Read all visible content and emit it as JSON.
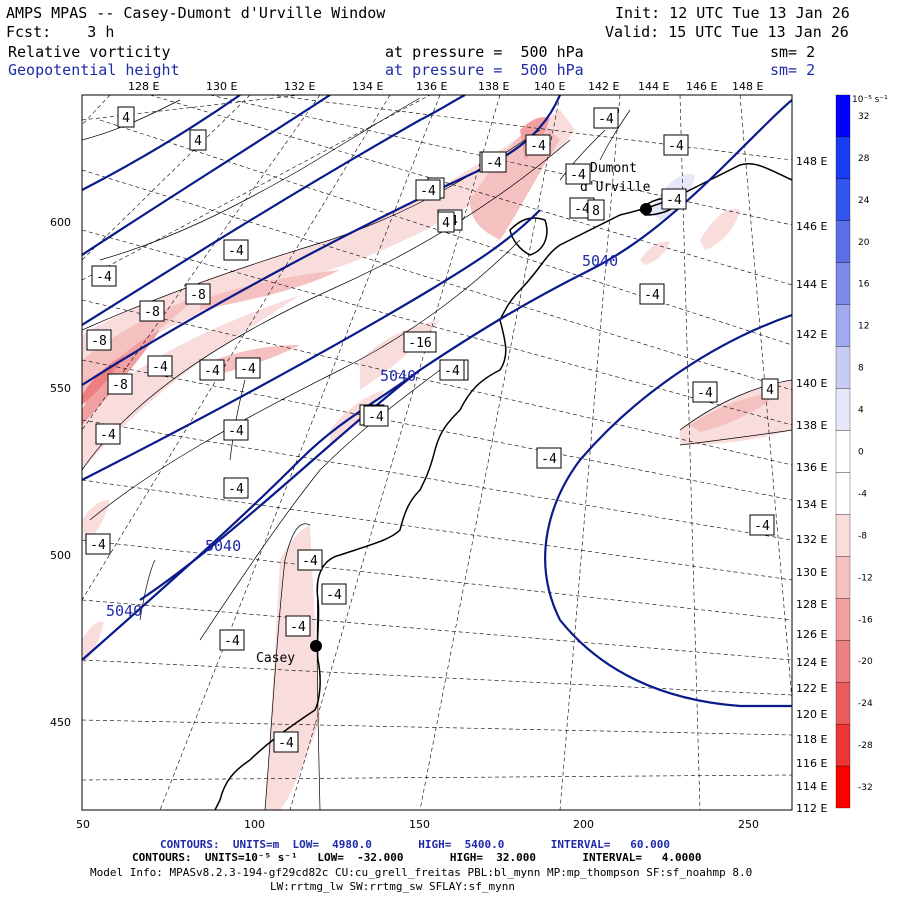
{
  "header": {
    "title": "AMPS MPAS -- Casey-Dumont d'Urville Window",
    "init": "Init: 12 UTC Tue 13 Jan 26",
    "fcst": "Fcst:    3 h",
    "valid": "Valid: 15 UTC Tue 13 Jan 26",
    "field1": "Relative vorticity",
    "field1_level": "at pressure =  500 hPa",
    "field1_sm": "sm= 2",
    "field2": "Geopotential height",
    "field2_level": "at pressure =  500 hPa",
    "field2_sm": "sm= 2"
  },
  "top_lon_labels": [
    "128 E",
    "130 E",
    "132 E",
    "134 E",
    "136 E",
    "138 E",
    "140 E",
    "142 E",
    "144 E",
    "146 E",
    "148 E"
  ],
  "right_lon_labels": [
    "148 E",
    "146 E",
    "144 E",
    "142 E",
    "140 E",
    "138 E",
    "136 E",
    "134 E",
    "132 E",
    "130 E",
    "128 E",
    "126 E",
    "124 E",
    "122 E",
    "120 E",
    "118 E",
    "116 E",
    "114 E",
    "112 E"
  ],
  "x_axis_ticks": [
    "50",
    "100",
    "150",
    "200",
    "250"
  ],
  "y_axis_ticks": [
    "600",
    "550",
    "500",
    "450"
  ],
  "colorbar": {
    "unit_label": "10⁻⁵ s⁻¹",
    "labels": [
      "32",
      "28",
      "24",
      "20",
      "16",
      "12",
      "8",
      "4",
      "0",
      "-4",
      "-8",
      "-12",
      "-16",
      "-20",
      "-24",
      "-28",
      "-32"
    ],
    "colors": [
      "#0000ff",
      "#1a3bf5",
      "#3355ee",
      "#5a6fe6",
      "#7d8ae8",
      "#a0aaee",
      "#c8ccf4",
      "#e6e8fa",
      "#ffffff",
      "#ffffff",
      "#f9dcdc",
      "#f5c0c0",
      "#f0a0a0",
      "#ec7f7f",
      "#ea5d5d",
      "#ee3535",
      "#ff0000"
    ]
  },
  "places": [
    "Dumont",
    "d'Urville",
    "Casey"
  ],
  "contour_labels_height": [
    "5040",
    "5040",
    "5040",
    "5040"
  ],
  "vort_labels": [
    "4",
    "4",
    "-4",
    "-4",
    "-4",
    "-4",
    "-4",
    "4",
    "-4",
    "-4",
    "-4",
    "-4",
    "-4",
    "-8",
    "-8",
    "-8",
    "-16",
    "-8",
    "-4",
    "-4",
    "-4",
    "-4",
    "-4",
    "-4",
    "-4",
    "-4",
    "-4",
    "-4",
    "-4",
    "-4",
    "-4",
    "-4",
    "-4",
    "-4",
    "-8",
    "-4",
    "4",
    "4",
    "8",
    "-4",
    "-4",
    "-4",
    "-4"
  ],
  "footer": {
    "line1": "CONTOURS:  UNITS=m  LOW=  4980.0       HIGH=  5400.0       INTERVAL=   60.000",
    "line2": "CONTOURS:  UNITS=10⁻⁵ s⁻¹   LOW=  -32.000       HIGH=  32.000       INTERVAL=   4.0000",
    "line3": "Model Info: MPASv8.2.3-194-gf29cd82c CU:cu_grell_freitas PBL:bl_mynn MP:mp_thompson SF:sf_noahmp 8.0",
    "line4": "LW:rrtmg_lw SW:rrtmg_sw SFLAY:sf_mynn"
  }
}
